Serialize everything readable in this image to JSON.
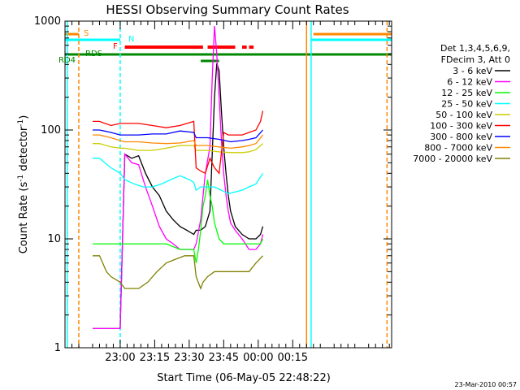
{
  "chart_data": {
    "type": "line",
    "title": "HESSI Observing Summary Count Rates",
    "xlabel": "Start Time (06-May-05 22:48:22)",
    "ylabel_main": "Count Rate (s",
    "ylabel_sup1": "-1",
    "ylabel_mid": " detector",
    "ylabel_sup2": "-1",
    "ylabel_end": ")",
    "yscale": "log",
    "ylim": [
      1,
      1000
    ],
    "xlim_min": [
      -12,
      130
    ],
    "x_ticks": [
      {
        "t": 12,
        "label": "23:00"
      },
      {
        "t": 27,
        "label": "23:15"
      },
      {
        "t": 42,
        "label": "23:30"
      },
      {
        "t": 57,
        "label": "23:45"
      },
      {
        "t": 72,
        "label": "00:00"
      },
      {
        "t": 87,
        "label": "00:15"
      }
    ],
    "y_ticks": [
      {
        "v": 1,
        "label": "1"
      },
      {
        "v": 10,
        "label": "10"
      },
      {
        "v": 100,
        "label": "100"
      },
      {
        "v": 1000,
        "label": "1000"
      }
    ],
    "legend_header": [
      "Det 1,3,4,5,6,9,",
      "FDecim 3, Att 0"
    ],
    "legend_placement": "right",
    "series": [
      {
        "name": "3 - 6 keV",
        "color": "#000000",
        "x": [
          0,
          12,
          14,
          17,
          20,
          23,
          26,
          29,
          32,
          35,
          38,
          41,
          44,
          45,
          47,
          49,
          51,
          52,
          53,
          54,
          55,
          56,
          57,
          58,
          59,
          60,
          62,
          65,
          68,
          71,
          73,
          74
        ],
        "y": [
          1.5,
          1.5,
          60,
          55,
          58,
          40,
          30,
          25,
          18,
          15,
          13,
          12,
          11,
          12,
          12,
          13,
          18,
          60,
          200,
          410,
          350,
          150,
          70,
          40,
          25,
          18,
          13,
          11,
          10,
          10,
          11,
          13
        ]
      },
      {
        "name": "6 - 12 keV",
        "color": "#ff00ff",
        "x": [
          0,
          12,
          14,
          17,
          20,
          23,
          26,
          29,
          32,
          35,
          38,
          41,
          44,
          45,
          47,
          49,
          51,
          52,
          53,
          54,
          55,
          56,
          57,
          58,
          59,
          60,
          62,
          65,
          68,
          71,
          73,
          74
        ],
        "y": [
          1.5,
          1.5,
          60,
          50,
          48,
          30,
          20,
          13,
          10,
          9,
          8,
          8,
          8,
          9,
          15,
          40,
          70,
          300,
          900,
          500,
          200,
          80,
          40,
          25,
          18,
          14,
          12,
          10,
          8,
          8,
          9,
          11
        ]
      },
      {
        "name": "12 - 25 keV",
        "color": "#00ff00",
        "x": [
          0,
          3,
          12,
          14,
          20,
          26,
          32,
          38,
          44,
          45,
          46,
          47,
          48,
          49,
          50,
          51,
          52,
          53,
          55,
          57,
          59,
          62,
          65,
          68,
          71,
          73,
          74
        ],
        "y": [
          9,
          9,
          9,
          9,
          9,
          9,
          9,
          8,
          8,
          6,
          8,
          12,
          20,
          25,
          35,
          25,
          20,
          14,
          10,
          9,
          9,
          9,
          9,
          9,
          9,
          9,
          10
        ]
      },
      {
        "name": "25 - 50 keV",
        "color": "#00ffff",
        "x": [
          0,
          3,
          8,
          12,
          14,
          18,
          22,
          26,
          30,
          34,
          38,
          42,
          44,
          45,
          47,
          50,
          53,
          56,
          59,
          62,
          65,
          68,
          71,
          74
        ],
        "y": [
          55,
          55,
          45,
          40,
          35,
          32,
          30,
          30,
          32,
          35,
          38,
          35,
          33,
          28,
          30,
          30,
          30,
          28,
          26,
          27,
          28,
          30,
          32,
          40
        ]
      },
      {
        "name": "50 - 100 keV",
        "color": "#cccc00",
        "x": [
          0,
          3,
          8,
          12,
          14,
          20,
          26,
          32,
          38,
          44,
          45,
          50,
          55,
          60,
          65,
          68,
          71,
          74
        ],
        "y": [
          75,
          75,
          70,
          68,
          68,
          65,
          65,
          68,
          72,
          72,
          65,
          65,
          63,
          62,
          62,
          63,
          66,
          75
        ]
      },
      {
        "name": "100 - 300 keV",
        "color": "#ff0000",
        "x": [
          0,
          3,
          8,
          12,
          14,
          20,
          26,
          32,
          38,
          44,
          45,
          47,
          49,
          51,
          53,
          55,
          57,
          59,
          62,
          65,
          68,
          71,
          73,
          74
        ],
        "y": [
          120,
          120,
          110,
          115,
          115,
          115,
          110,
          105,
          110,
          120,
          45,
          42,
          40,
          55,
          45,
          40,
          95,
          90,
          90,
          90,
          95,
          100,
          120,
          150
        ]
      },
      {
        "name": "300 - 800 keV",
        "color": "#0000ff",
        "x": [
          0,
          3,
          8,
          12,
          14,
          20,
          26,
          32,
          38,
          44,
          45,
          50,
          55,
          60,
          65,
          68,
          71,
          74
        ],
        "y": [
          100,
          100,
          95,
          90,
          90,
          90,
          92,
          92,
          98,
          95,
          85,
          85,
          82,
          78,
          80,
          82,
          85,
          100
        ]
      },
      {
        "name": "800 - 7000 keV",
        "color": "#ff8800",
        "x": [
          0,
          3,
          8,
          12,
          14,
          20,
          26,
          32,
          38,
          44,
          45,
          50,
          55,
          60,
          65,
          68,
          71,
          74
        ],
        "y": [
          90,
          90,
          85,
          80,
          78,
          78,
          76,
          75,
          76,
          80,
          72,
          72,
          70,
          68,
          70,
          72,
          75,
          90
        ]
      },
      {
        "name": "7000 - 20000 keV",
        "color": "#808000",
        "x": [
          0,
          3,
          6,
          8,
          12,
          14,
          17,
          20,
          24,
          28,
          32,
          36,
          40,
          44,
          45,
          47,
          48,
          50,
          53,
          56,
          59,
          62,
          65,
          68,
          71,
          74
        ],
        "y": [
          7,
          7,
          5,
          4.5,
          4,
          3.5,
          3.5,
          3.5,
          4,
          5,
          6,
          6.5,
          7,
          7,
          4.5,
          3.5,
          4,
          4.5,
          5,
          5,
          5,
          5,
          5,
          5,
          6,
          7
        ]
      }
    ],
    "markers": [
      {
        "label": "S",
        "color": "#ff8800"
      },
      {
        "label": "N",
        "color": "#00ffff"
      },
      {
        "label": "F",
        "color": "#ff0000"
      },
      {
        "label": "RDS",
        "color": "#008800"
      },
      {
        "label": "RD4",
        "color": "#008800"
      }
    ],
    "footer_timestamp": "23-Mar-2010 00:57"
  }
}
